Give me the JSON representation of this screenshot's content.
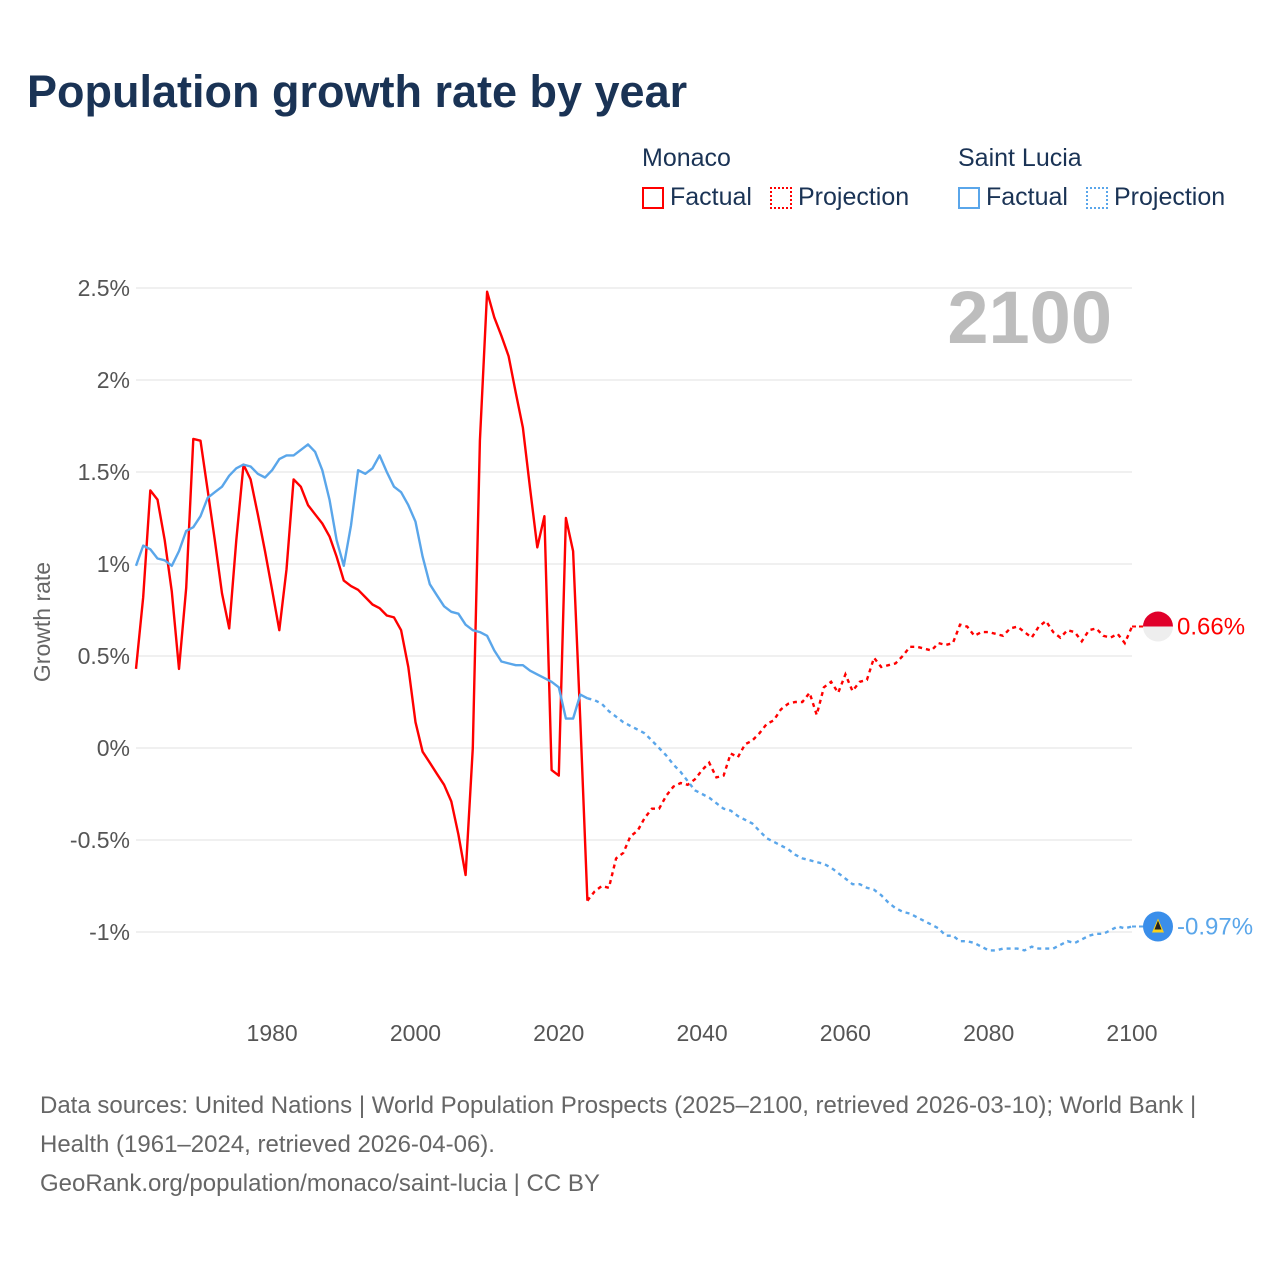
{
  "title": "Population growth rate by year",
  "legend": {
    "groups": [
      {
        "name": "Monaco",
        "factual": "Factual",
        "projection": "Projection",
        "color": "#ff0000"
      },
      {
        "name": "Saint Lucia",
        "factual": "Factual",
        "projection": "Projection",
        "color": "#5aa6ea"
      }
    ]
  },
  "footer": {
    "sources": "Data sources: United Nations | World Population Prospects (2025–2100, retrieved 2026-03-10); World Bank | Health (1961–2024, retrieved 2026-04-06).",
    "link": "GeoRank.org/population/monaco/saint-lucia | CC BY"
  },
  "chart_data": {
    "type": "line",
    "title": "Population growth rate by year",
    "ylabel": "Growth rate",
    "xlabel": "",
    "current_year_label": "2100",
    "xlim": [
      1961,
      2100
    ],
    "ylim": [
      -1.25,
      2.6
    ],
    "x_ticks": [
      1980,
      2000,
      2020,
      2040,
      2060,
      2080,
      2100
    ],
    "y_ticks": [
      {
        "value": 2.5,
        "label": "2.5%"
      },
      {
        "value": 2,
        "label": "2%"
      },
      {
        "value": 1.5,
        "label": "1.5%"
      },
      {
        "value": 1,
        "label": "1%"
      },
      {
        "value": 0.5,
        "label": "0.5%"
      },
      {
        "value": 0,
        "label": "0%"
      },
      {
        "value": -0.5,
        "label": "-0.5%"
      },
      {
        "value": -1,
        "label": "-1%"
      }
    ],
    "grid": true,
    "series": [
      {
        "name": "Monaco",
        "color": "#ff0000",
        "end_label": "0.66%",
        "factual": {
          "start_year": 1961,
          "values": [
            0.43,
            0.82,
            1.4,
            1.35,
            1.13,
            0.85,
            0.43,
            0.87,
            1.68,
            1.67,
            1.4,
            1.13,
            0.84,
            0.65,
            1.13,
            1.54,
            1.46,
            1.27,
            1.07,
            0.86,
            0.64,
            0.97,
            1.46,
            1.42,
            1.32,
            1.27,
            1.22,
            1.15,
            1.04,
            0.91,
            0.88,
            0.86,
            0.82,
            0.78,
            0.76,
            0.72,
            0.71,
            0.64,
            0.44,
            0.14,
            -0.02,
            -0.08,
            -0.14,
            -0.2,
            -0.29,
            -0.47,
            -0.69,
            0.0,
            1.67,
            2.48,
            2.34,
            2.24,
            2.13,
            1.93,
            1.74,
            1.41,
            1.09,
            1.26,
            -0.12,
            -0.15,
            1.25,
            1.07,
            0.15,
            -0.83
          ]
        },
        "projection": {
          "start_year": 2025,
          "values": [
            -0.78,
            -0.75,
            -0.76,
            -0.6,
            -0.57,
            -0.48,
            -0.45,
            -0.38,
            -0.33,
            -0.33,
            -0.26,
            -0.21,
            -0.19,
            -0.2,
            -0.17,
            -0.12,
            -0.08,
            -0.16,
            -0.15,
            -0.03,
            -0.05,
            0.02,
            0.04,
            0.08,
            0.13,
            0.15,
            0.21,
            0.24,
            0.25,
            0.25,
            0.3,
            0.18,
            0.33,
            0.36,
            0.3,
            0.4,
            0.31,
            0.36,
            0.37,
            0.49,
            0.44,
            0.45,
            0.46,
            0.5,
            0.55,
            0.55,
            0.54,
            0.53,
            0.57,
            0.56,
            0.57,
            0.67,
            0.66,
            0.61,
            0.63,
            0.63,
            0.62,
            0.61,
            0.65,
            0.66,
            0.63,
            0.6,
            0.66,
            0.69,
            0.63,
            0.6,
            0.64,
            0.63,
            0.58,
            0.64,
            0.65,
            0.61,
            0.6,
            0.62,
            0.57,
            0.66
          ]
        }
      },
      {
        "name": "Saint Lucia",
        "color": "#5aa6ea",
        "end_label": "-0.97%",
        "factual": {
          "start_year": 1961,
          "values": [
            0.99,
            1.1,
            1.08,
            1.03,
            1.02,
            0.99,
            1.07,
            1.18,
            1.2,
            1.26,
            1.36,
            1.39,
            1.42,
            1.48,
            1.52,
            1.54,
            1.53,
            1.49,
            1.47,
            1.51,
            1.57,
            1.59,
            1.59,
            1.62,
            1.65,
            1.61,
            1.51,
            1.35,
            1.13,
            0.99,
            1.21,
            1.51,
            1.49,
            1.52,
            1.59,
            1.5,
            1.42,
            1.39,
            1.32,
            1.23,
            1.04,
            0.89,
            0.83,
            0.77,
            0.74,
            0.73,
            0.67,
            0.64,
            0.63,
            0.61,
            0.53,
            0.47,
            0.46,
            0.45,
            0.45,
            0.42,
            0.4,
            0.38,
            0.36,
            0.33,
            0.16,
            0.16,
            0.29,
            0.27
          ]
        },
        "projection": {
          "start_year": 2025,
          "values": [
            0.26,
            0.24,
            0.2,
            0.17,
            0.14,
            0.12,
            0.1,
            0.08,
            0.04,
            0.0,
            -0.04,
            -0.09,
            -0.13,
            -0.18,
            -0.23,
            -0.25,
            -0.27,
            -0.3,
            -0.33,
            -0.34,
            -0.37,
            -0.39,
            -0.41,
            -0.45,
            -0.49,
            -0.51,
            -0.53,
            -0.55,
            -0.58,
            -0.6,
            -0.61,
            -0.62,
            -0.63,
            -0.65,
            -0.68,
            -0.71,
            -0.74,
            -0.74,
            -0.76,
            -0.77,
            -0.8,
            -0.84,
            -0.87,
            -0.89,
            -0.9,
            -0.92,
            -0.94,
            -0.96,
            -0.98,
            -1.02,
            -1.02,
            -1.05,
            -1.05,
            -1.06,
            -1.08,
            -1.1,
            -1.1,
            -1.09,
            -1.09,
            -1.09,
            -1.1,
            -1.08,
            -1.09,
            -1.09,
            -1.09,
            -1.07,
            -1.05,
            -1.06,
            -1.04,
            -1.02,
            -1.01,
            -1.01,
            -0.99,
            -0.97,
            -0.98,
            -0.97
          ]
        }
      }
    ]
  }
}
